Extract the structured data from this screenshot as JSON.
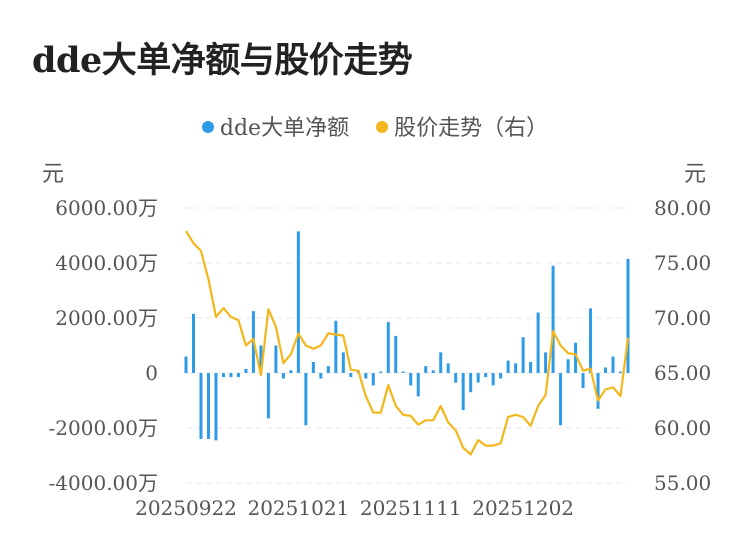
{
  "title": "dde大单净额与股价走势",
  "legend": {
    "series1": "dde大单净额",
    "series2": "股价走势（右）"
  },
  "colors": {
    "bar": "#2e9be6",
    "line": "#f4b71b",
    "grid": "#e8e8e8"
  },
  "chart_data": {
    "type": "bar+line",
    "title": "dde大单净额与股价走势",
    "left_axis": {
      "unit": "元",
      "ticks": [
        "6000.00万",
        "4000.00万",
        "2000.00万",
        "0",
        "-2000.00万",
        "-4000.00万"
      ],
      "range": [
        -4000,
        6000
      ]
    },
    "right_axis": {
      "unit": "元",
      "ticks": [
        "80.00",
        "75.00",
        "70.00",
        "65.00",
        "60.00",
        "55.00"
      ],
      "range": [
        55,
        80
      ]
    },
    "x_ticks": [
      "20250922",
      "20251021",
      "20251111",
      "20251202"
    ],
    "x_tick_index": [
      0,
      15,
      30,
      45
    ],
    "series": [
      {
        "name": "dde大单净额",
        "type": "bar",
        "unit": "万",
        "values": [
          600,
          2150,
          -2400,
          -2400,
          -2450,
          -150,
          -150,
          -150,
          150,
          2250,
          1000,
          -1650,
          1000,
          -200,
          100,
          5150,
          -1900,
          400,
          -200,
          250,
          1900,
          750,
          -150,
          100,
          -200,
          -450,
          50,
          1850,
          1350,
          50,
          -450,
          -850,
          250,
          100,
          750,
          350,
          -350,
          -1350,
          -700,
          -350,
          -150,
          -450,
          -200,
          450,
          350,
          1300,
          400,
          2200,
          750,
          3900,
          -1900,
          500,
          1100,
          -550,
          2350,
          -1300,
          200,
          600,
          50,
          4150
        ]
      },
      {
        "name": "股价走势（右）",
        "type": "line",
        "values": [
          77.9,
          76.8,
          76.1,
          73.5,
          70.1,
          70.9,
          70.1,
          69.8,
          67.5,
          68.1,
          64.8,
          70.8,
          69.2,
          65.9,
          66.7,
          68.6,
          67.5,
          67.2,
          67.5,
          68.6,
          68.5,
          68.4,
          65.3,
          65.2,
          62.9,
          61.4,
          61.4,
          63.9,
          62.0,
          61.2,
          61.1,
          60.3,
          60.7,
          60.7,
          62.0,
          60.5,
          59.8,
          58.2,
          57.6,
          58.9,
          58.4,
          58.4,
          58.6,
          61.0,
          61.2,
          61.0,
          60.2,
          62.0,
          63.0,
          68.8,
          67.5,
          66.8,
          66.7,
          65.2,
          65.4,
          62.5,
          63.5,
          63.7,
          62.9,
          68.2
        ]
      }
    ]
  }
}
